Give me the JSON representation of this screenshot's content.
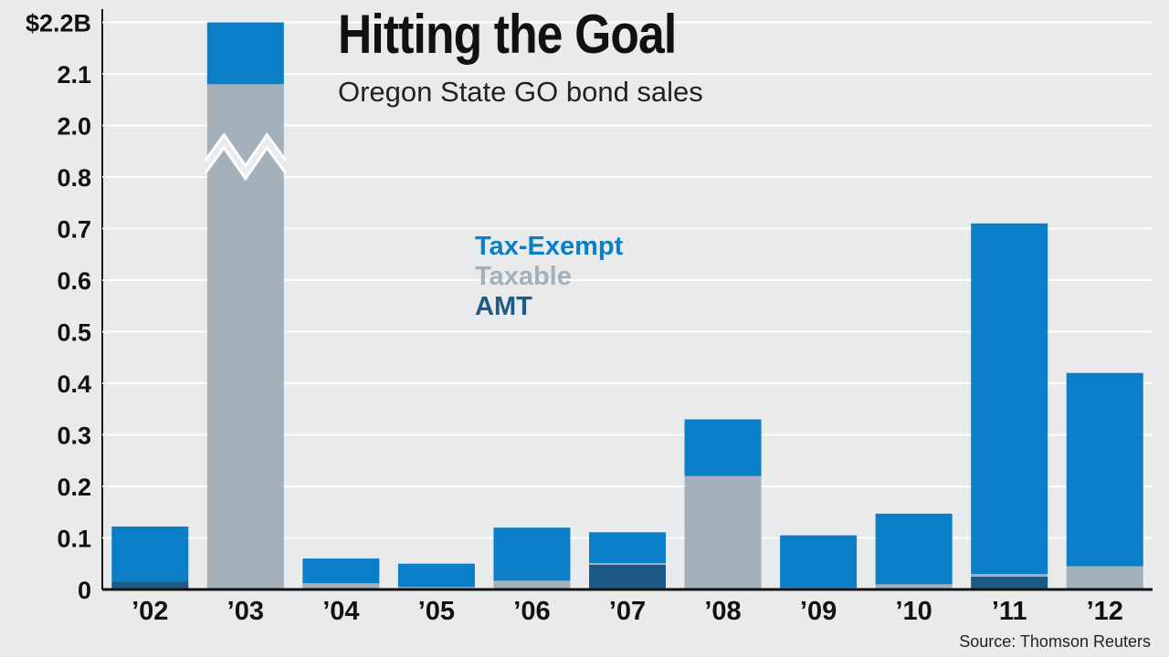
{
  "colors": {
    "tax_exempt": "#0a7ec6",
    "taxable": "#a4b1bb",
    "amt": "#1d5a86",
    "grid": "#ffffff",
    "background": "#e9eaeb"
  },
  "chart_data": {
    "type": "bar",
    "stacked": true,
    "title": "Hitting the Goal",
    "subtitle": "Oregon State GO bond sales",
    "source": "Source: Thomson Reuters",
    "categories": [
      "’02",
      "’03",
      "’04",
      "’05",
      "’06",
      "’07",
      "’08",
      "’09",
      "’10",
      "’11",
      "’12"
    ],
    "y_tick_labels": [
      "0",
      "0.1",
      "0.2",
      "0.3",
      "0.4",
      "0.5",
      "0.6",
      "0.7",
      "0.8",
      "2.0",
      "2.1",
      "$2.2B"
    ],
    "y_tick_values": [
      0,
      0.1,
      0.2,
      0.3,
      0.4,
      0.5,
      0.6,
      0.7,
      0.8,
      2.0,
      2.1,
      2.2
    ],
    "axis_break": {
      "from": 0.8,
      "to": 2.0
    },
    "ylim": [
      0,
      2.2
    ],
    "grid": true,
    "legend_position": "center",
    "series": [
      {
        "name": "AMT",
        "values": [
          0.015,
          0,
          0,
          0,
          0,
          0.048,
          0,
          0,
          0,
          0.025,
          0
        ]
      },
      {
        "name": "Taxable",
        "values": [
          0,
          2.08,
          0.012,
          0.005,
          0.017,
          0.003,
          0.22,
          0.003,
          0.01,
          0.005,
          0.045
        ]
      },
      {
        "name": "Tax-Exempt",
        "values": [
          0.107,
          0.12,
          0.048,
          0.045,
          0.103,
          0.06,
          0.11,
          0.102,
          0.137,
          0.68,
          0.375
        ]
      }
    ]
  }
}
